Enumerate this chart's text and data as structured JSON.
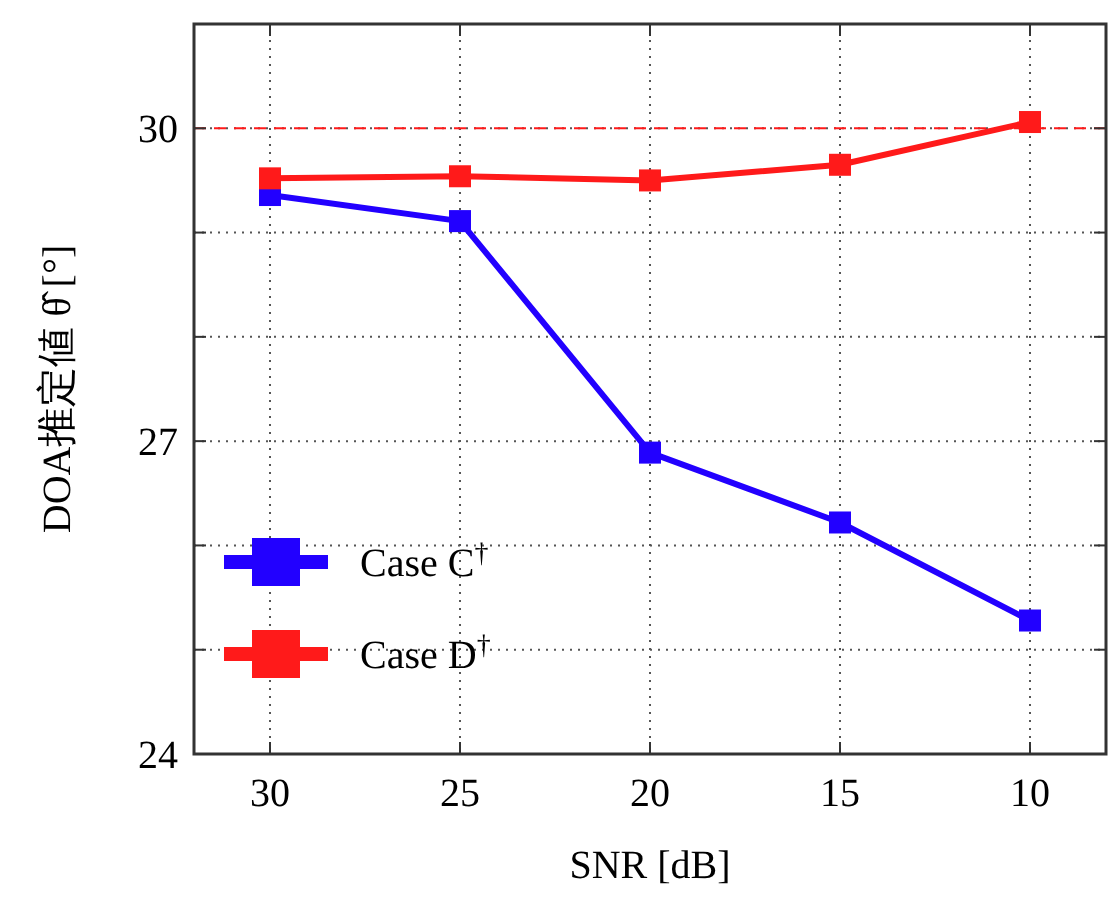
{
  "chart_data": {
    "type": "line",
    "xlabel": "SNR [dB]",
    "ylabel": "DOA推定値 θ̂ [°]",
    "x": [
      30,
      25,
      20,
      15,
      10
    ],
    "series": [
      {
        "name": "Case C$^{†}$",
        "color": "#2200ff",
        "values": [
          29.36,
          29.11,
          26.89,
          26.22,
          25.28
        ]
      },
      {
        "name": "Case D$^{†}$",
        "color": "#ff1a1a",
        "values": [
          29.52,
          29.54,
          29.5,
          29.65,
          30.06
        ]
      }
    ],
    "xlim": [
      32,
      8
    ],
    "ylim": [
      24,
      31
    ],
    "xticks": [
      30,
      25,
      20,
      15,
      10
    ],
    "yticks": [
      24,
      {
        "value": 25,
        "label": null
      },
      {
        "value": 26,
        "label": null
      },
      27,
      {
        "value": 28,
        "label": null
      },
      {
        "value": 29,
        "label": null
      },
      30
    ],
    "ref_lines": [
      {
        "axis": "y",
        "value": 30,
        "color": "#ff1a1a",
        "line_style": "dashed"
      }
    ],
    "grid": true,
    "legend": "bottom left",
    "marker": "square",
    "line_style": "solid"
  }
}
